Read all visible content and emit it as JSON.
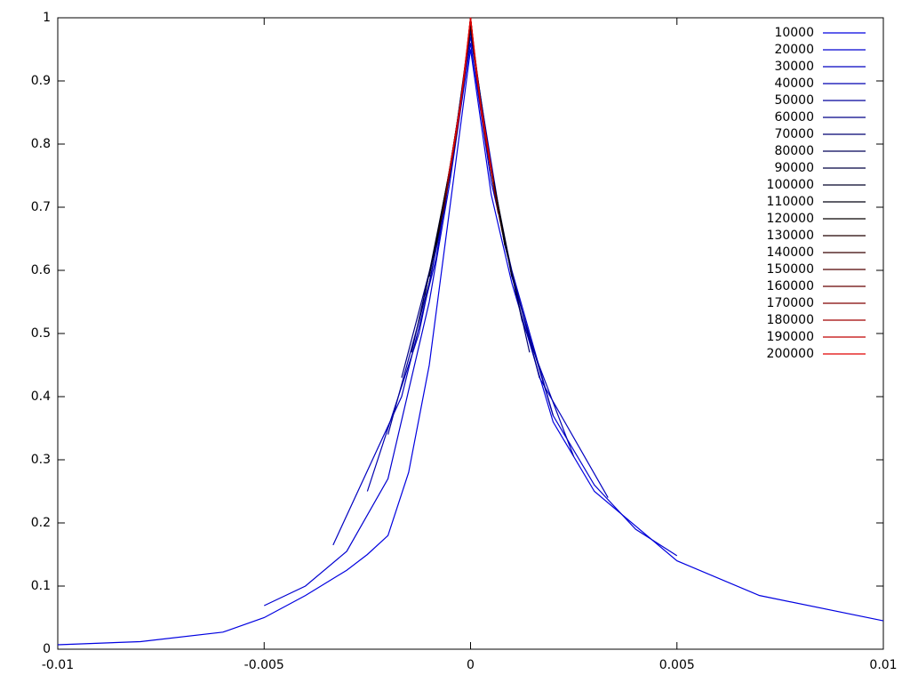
{
  "chart_data": {
    "type": "line",
    "legend": "top-right",
    "xlim": [
      -0.01,
      0.01
    ],
    "xticks": [
      -0.01,
      -0.005,
      0,
      0.005,
      0.01
    ],
    "ylim": [
      0,
      1
    ],
    "yticks": [
      0,
      0.1,
      0.2,
      0.3,
      0.4,
      0.5,
      0.6,
      0.7,
      0.8,
      0.9,
      1
    ],
    "series": [
      {
        "name": "10000",
        "color": "#0000e0",
        "x": [
          -0.01,
          -0.008,
          -0.006,
          -0.005,
          -0.004,
          -0.003,
          -0.0025,
          -0.002,
          -0.0015,
          -0.001,
          -0.0005,
          0,
          0.0005,
          0.001,
          0.002,
          0.003,
          0.005,
          0.007,
          0.01
        ],
        "values": [
          0.007,
          0.012,
          0.027,
          0.05,
          0.085,
          0.125,
          0.15,
          0.18,
          0.28,
          0.45,
          0.7,
          0.95,
          0.72,
          0.58,
          0.36,
          0.25,
          0.14,
          0.085,
          0.045
        ]
      },
      {
        "name": "20000",
        "color": "#0000d0",
        "x": [
          -0.005,
          -0.004,
          -0.003,
          -0.002,
          -0.001,
          -0.0005,
          0,
          0.0005,
          0.001,
          0.002,
          0.003,
          0.004,
          0.005
        ],
        "values": [
          0.069,
          0.1,
          0.155,
          0.27,
          0.55,
          0.74,
          0.96,
          0.74,
          0.6,
          0.37,
          0.26,
          0.19,
          0.148
        ]
      },
      {
        "name": "30000",
        "color": "#0000c0",
        "x": [
          -0.00333,
          -0.00167,
          -0.00083,
          0,
          0.00083,
          0.00167,
          0.00333
        ],
        "values": [
          0.165,
          0.4,
          0.62,
          0.97,
          0.64,
          0.43,
          0.24
        ]
      },
      {
        "name": "40000",
        "color": "#0000b0",
        "x": [
          -0.0025,
          -0.00125,
          -0.000625,
          0,
          0.000625,
          0.00125,
          0.0025
        ],
        "values": [
          0.25,
          0.5,
          0.7,
          0.98,
          0.71,
          0.52,
          0.305
        ]
      },
      {
        "name": "50000",
        "color": "#00009a",
        "x": [
          -0.002,
          -0.001,
          -0.0005,
          0,
          0.0005,
          0.001,
          0.002
        ],
        "values": [
          0.34,
          0.58,
          0.75,
          0.98,
          0.76,
          0.59,
          0.37
        ]
      },
      {
        "name": "60000",
        "color": "#000088",
        "x": [
          -0.00167,
          -0.00083,
          -0.00042,
          0,
          0.00042,
          0.00083,
          0.00167
        ],
        "values": [
          0.43,
          0.64,
          0.79,
          0.98,
          0.79,
          0.64,
          0.43
        ]
      },
      {
        "name": "70000",
        "color": "#000070",
        "x": [
          -0.00143,
          -0.00071,
          -0.00036,
          0,
          0.00036,
          0.00071,
          0.00143
        ],
        "values": [
          0.47,
          0.68,
          0.81,
          0.98,
          0.81,
          0.68,
          0.47
        ]
      },
      {
        "name": "80000",
        "color": "#000058",
        "x": [
          -0.00125,
          -0.000625,
          -0.00031,
          0,
          0.00031,
          0.000625,
          0.00125
        ],
        "values": [
          0.52,
          0.71,
          0.84,
          0.99,
          0.84,
          0.71,
          0.52
        ]
      },
      {
        "name": "90000",
        "color": "#000040",
        "x": [
          -0.00111,
          -0.00056,
          -0.00028,
          0,
          0.00028,
          0.00056,
          0.00111
        ],
        "values": [
          0.56,
          0.74,
          0.85,
          0.99,
          0.85,
          0.74,
          0.56
        ]
      },
      {
        "name": "100000",
        "color": "#000028",
        "x": [
          -0.001,
          -0.0005,
          -0.00025,
          0,
          0.00025,
          0.0005,
          0.001
        ],
        "values": [
          0.59,
          0.76,
          0.86,
          0.99,
          0.86,
          0.76,
          0.59
        ]
      },
      {
        "name": "110000",
        "color": "#000010",
        "x": [
          -0.00091,
          -0.00045,
          -0.00023,
          0,
          0.00023,
          0.00045,
          0.00091
        ],
        "values": [
          0.62,
          0.78,
          0.87,
          0.99,
          0.87,
          0.78,
          0.62
        ]
      },
      {
        "name": "120000",
        "color": "#080000",
        "x": [
          -0.00083,
          -0.00042,
          -0.00021,
          0,
          0.00021,
          0.00042,
          0.00083
        ],
        "values": [
          0.64,
          0.79,
          0.88,
          0.99,
          0.88,
          0.79,
          0.64
        ]
      },
      {
        "name": "130000",
        "color": "#200000",
        "x": [
          -0.00077,
          -0.00038,
          -0.00019,
          0,
          0.00019,
          0.00038,
          0.00077
        ],
        "values": [
          0.66,
          0.8,
          0.89,
          0.99,
          0.89,
          0.8,
          0.66
        ]
      },
      {
        "name": "140000",
        "color": "#380000",
        "x": [
          -0.00071,
          -0.00036,
          -0.00018,
          0,
          0.00018,
          0.00036,
          0.00071
        ],
        "values": [
          0.68,
          0.81,
          0.89,
          0.99,
          0.89,
          0.81,
          0.68
        ]
      },
      {
        "name": "150000",
        "color": "#500000",
        "x": [
          -0.00067,
          -0.00033,
          -0.00017,
          0,
          0.00017,
          0.00033,
          0.00067
        ],
        "values": [
          0.69,
          0.82,
          0.9,
          1,
          0.9,
          0.82,
          0.69
        ]
      },
      {
        "name": "160000",
        "color": "#680000",
        "x": [
          -0.000625,
          -0.00031,
          -0.00016,
          0,
          0.00016,
          0.00031,
          0.000625
        ],
        "values": [
          0.71,
          0.84,
          0.9,
          1,
          0.9,
          0.84,
          0.71
        ]
      },
      {
        "name": "170000",
        "color": "#800000",
        "x": [
          -0.00059,
          -0.00029,
          -0.00015,
          0,
          0.00015,
          0.00029,
          0.00059
        ],
        "values": [
          0.72,
          0.84,
          0.91,
          1,
          0.91,
          0.84,
          0.72
        ]
      },
      {
        "name": "180000",
        "color": "#a00000",
        "x": [
          -0.00056,
          -0.00028,
          -0.00014,
          0,
          0.00014,
          0.00028,
          0.00056
        ],
        "values": [
          0.74,
          0.85,
          0.91,
          1,
          0.91,
          0.85,
          0.74
        ]
      },
      {
        "name": "190000",
        "color": "#c00000",
        "x": [
          -0.00053,
          -0.00026,
          -0.00013,
          0,
          0.00013,
          0.00026,
          0.00053
        ],
        "values": [
          0.75,
          0.85,
          0.92,
          1,
          0.92,
          0.85,
          0.75
        ]
      },
      {
        "name": "200000",
        "color": "#e00000",
        "x": [
          -0.0005,
          -0.00025,
          -0.000125,
          0,
          0.000125,
          0.00025,
          0.0005
        ],
        "values": [
          0.76,
          0.86,
          0.93,
          1,
          0.93,
          0.86,
          0.76
        ]
      }
    ]
  }
}
